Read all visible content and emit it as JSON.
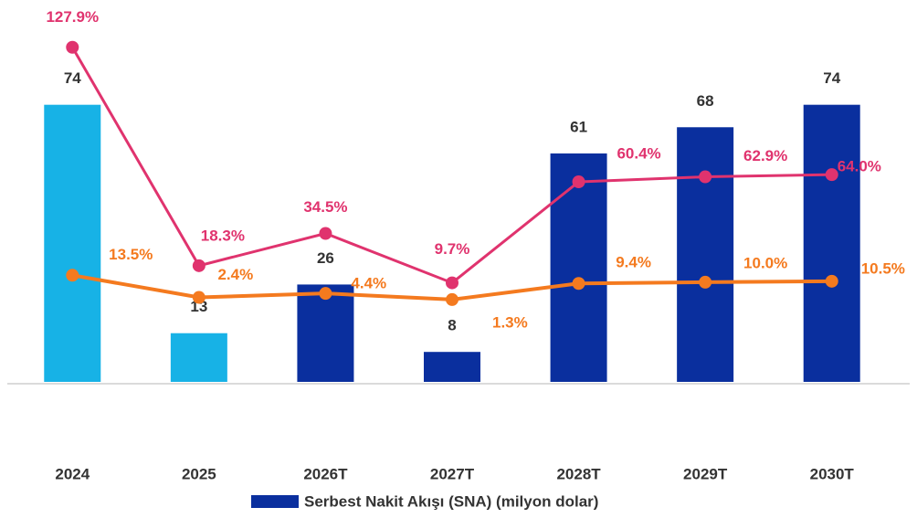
{
  "chart_data": {
    "type": "bar",
    "categories": [
      "2024",
      "2025",
      "2026T",
      "2027T",
      "2028T",
      "2029T",
      "2030T"
    ],
    "series": [
      {
        "name": "Serbest Nakit Akışı (SNA) (milyon dolar)",
        "type": "bar",
        "colors": [
          "#17b2e6",
          "#17b2e6",
          "#0a2f9e",
          "#0a2f9e",
          "#0a2f9e",
          "#0a2f9e",
          "#0a2f9e"
        ],
        "color": "#0a2f9e",
        "values": [
          74,
          13,
          26,
          8,
          61,
          68,
          74
        ]
      },
      {
        "type": "line",
        "axis": "y2",
        "color": "#e0336e",
        "values": [
          127.9,
          18.3,
          34.5,
          9.7,
          60.4,
          62.9,
          64.0
        ],
        "value_labels": [
          "127.9%",
          "18.3%",
          "34.5%",
          "9.7%",
          "60.4%",
          "62.9%",
          "64.0%"
        ]
      },
      {
        "type": "line",
        "axis": "y2",
        "color": "#f47a1f",
        "values": [
          13.5,
          2.4,
          4.4,
          1.3,
          9.4,
          10.0,
          10.5
        ],
        "value_labels": [
          "13.5%",
          "2.4%",
          "4.4%",
          "1.3%",
          "9.4%",
          "10.0%",
          "10.5%"
        ]
      }
    ],
    "ylim": [
      0,
      91
    ],
    "y2lim": [
      -40,
      131
    ]
  }
}
